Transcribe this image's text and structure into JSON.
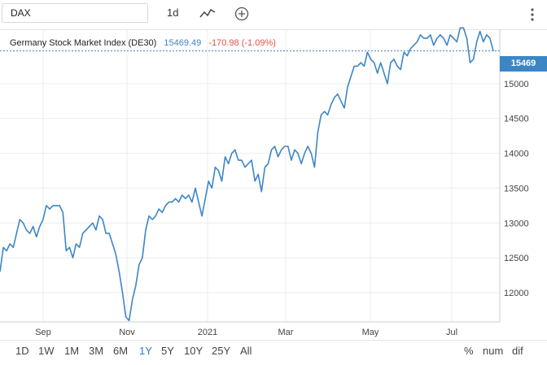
{
  "toolbar": {
    "symbol": "DAX",
    "interval": "1d",
    "icons": [
      "chart-style-icon",
      "add-compare-icon",
      "more-vertical-icon"
    ]
  },
  "legend": {
    "name": "Germany Stock Market Index (DE30)",
    "last": "15469.49",
    "change": "-170.98 (-1.09%)"
  },
  "price_tag": "15469",
  "ranges": [
    "1D",
    "1W",
    "1M",
    "3M",
    "6M",
    "1Y",
    "5Y",
    "10Y",
    "25Y",
    "All"
  ],
  "active_range": "1Y",
  "options": [
    "%",
    "num",
    "dif"
  ],
  "colors": {
    "line": "#3d86c6",
    "negative": "#e0504a",
    "active": "#2f78c4"
  },
  "chart_data": {
    "type": "line",
    "title": "",
    "xlabel": "",
    "ylabel": "",
    "x_ticks": [
      "Sep",
      "Nov",
      "2021",
      "Mar",
      "May",
      "Jul"
    ],
    "y_ticks": [
      12000,
      12500,
      13000,
      13500,
      14000,
      14500,
      15000
    ],
    "ylim": [
      11580,
      15780
    ],
    "grid": true,
    "last_value_line": 15469,
    "series": [
      {
        "name": "",
        "values": [
          12300,
          12650,
          12600,
          12700,
          12650,
          12850,
          13050,
          13000,
          12900,
          12850,
          12950,
          12800,
          12950,
          13050,
          13250,
          13200,
          13250,
          13250,
          13250,
          13150,
          12600,
          12650,
          12500,
          12700,
          12650,
          12850,
          12900,
          12950,
          13000,
          12900,
          13100,
          13050,
          12850,
          12850,
          12700,
          12550,
          12300,
          12000,
          11650,
          11600,
          11900,
          12100,
          12400,
          12500,
          12900,
          13100,
          13050,
          13100,
          13200,
          13150,
          13250,
          13300,
          13300,
          13350,
          13300,
          13400,
          13350,
          13400,
          13300,
          13500,
          13300,
          13100,
          13350,
          13600,
          13500,
          13800,
          13750,
          13600,
          13950,
          13850,
          14000,
          14050,
          13900,
          13900,
          13800,
          13850,
          13900,
          13600,
          13700,
          13450,
          13800,
          13850,
          14050,
          14100,
          13950,
          14050,
          14100,
          14100,
          13900,
          14050,
          14000,
          13850,
          14000,
          14100,
          14000,
          13800,
          14300,
          14550,
          14600,
          14550,
          14700,
          14800,
          14850,
          14750,
          14650,
          14950,
          15100,
          15250,
          15250,
          15300,
          15250,
          15450,
          15350,
          15300,
          15150,
          15300,
          15150,
          15000,
          15300,
          15350,
          15250,
          15200,
          15450,
          15400,
          15500,
          15550,
          15600,
          15700,
          15650,
          15650,
          15700,
          15550,
          15650,
          15700,
          15650,
          15550,
          15700,
          15650,
          15600,
          15800,
          15800,
          15650,
          15300,
          15350,
          15600,
          15750,
          15600,
          15700,
          15650,
          15469
        ]
      }
    ]
  }
}
